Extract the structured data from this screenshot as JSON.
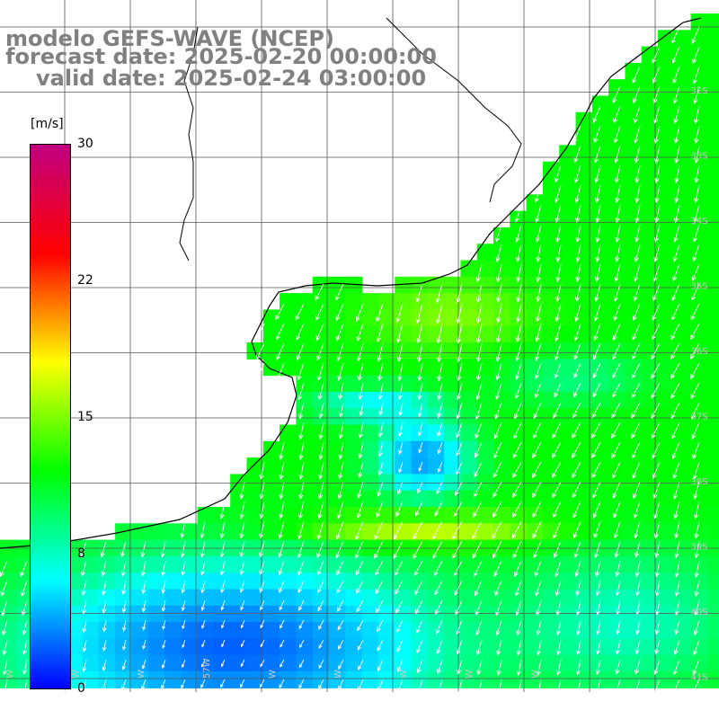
{
  "title": {
    "line1": "modelo GEFS-WAVE (NCEP)",
    "line2": "forecast date: 2025-02-20 00:00:00",
    "line3": "valid date: 2025-02-24 03:00:00"
  },
  "colorbar": {
    "unit": "[m/s]",
    "min": 0,
    "max": 30,
    "ticks": [
      "30",
      "22",
      "15",
      "8",
      "0"
    ],
    "tick_values": [
      30,
      22,
      15,
      8,
      0
    ],
    "colors": [
      "#0000ff",
      "#00ffff",
      "#00ff00",
      "#ffff00",
      "#ff0000",
      "#c0007f"
    ]
  },
  "map": {
    "lat_labels": [
      "32S",
      "33S",
      "34S",
      "35S",
      "36S",
      "37S",
      "38S",
      "39S",
      "40S",
      "41S"
    ],
    "lon_labels": [
      "W",
      "W",
      "W",
      "57W",
      "W",
      "W",
      "W",
      "W",
      "W"
    ],
    "background": "#ffffff",
    "grid_color": "#000000"
  }
}
